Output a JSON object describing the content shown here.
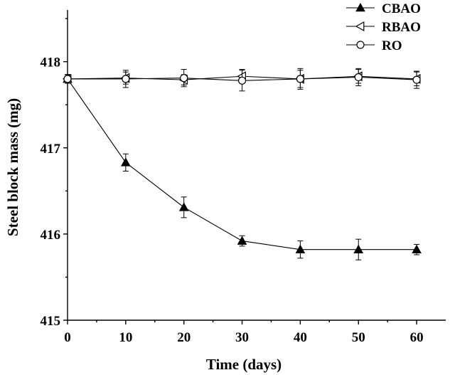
{
  "chart_data": {
    "type": "line",
    "xlabel": "Time (days)",
    "ylabel": "Steel block mass (mg)",
    "xlim": [
      0,
      65
    ],
    "ylim": [
      415,
      418.6
    ],
    "x_ticks": [
      0,
      10,
      20,
      30,
      40,
      50,
      60
    ],
    "y_ticks": [
      415,
      416,
      417,
      418
    ],
    "legend_position": "top-right",
    "grid": false,
    "series": [
      {
        "name": "CBAO",
        "marker": "filled-triangle-up",
        "x": [
          0,
          10,
          20,
          30,
          40,
          50,
          60
        ],
        "y": [
          417.8,
          416.83,
          416.31,
          415.92,
          415.82,
          415.82,
          415.82
        ],
        "error": [
          0.05,
          0.1,
          0.12,
          0.06,
          0.1,
          0.12,
          0.06
        ]
      },
      {
        "name": "RBAO",
        "marker": "open-triangle-left",
        "x": [
          0,
          10,
          20,
          30,
          40,
          50,
          60
        ],
        "y": [
          417.8,
          417.81,
          417.79,
          417.83,
          417.8,
          417.83,
          417.8
        ],
        "error": [
          0.05,
          0.07,
          0.06,
          0.08,
          0.1,
          0.08,
          0.08
        ]
      },
      {
        "name": "RO",
        "marker": "open-circle",
        "x": [
          0,
          10,
          20,
          30,
          40,
          50,
          60
        ],
        "y": [
          417.8,
          417.8,
          417.81,
          417.78,
          417.8,
          417.82,
          417.79
        ],
        "error": [
          0.05,
          0.1,
          0.1,
          0.12,
          0.12,
          0.1,
          0.1
        ]
      }
    ]
  }
}
